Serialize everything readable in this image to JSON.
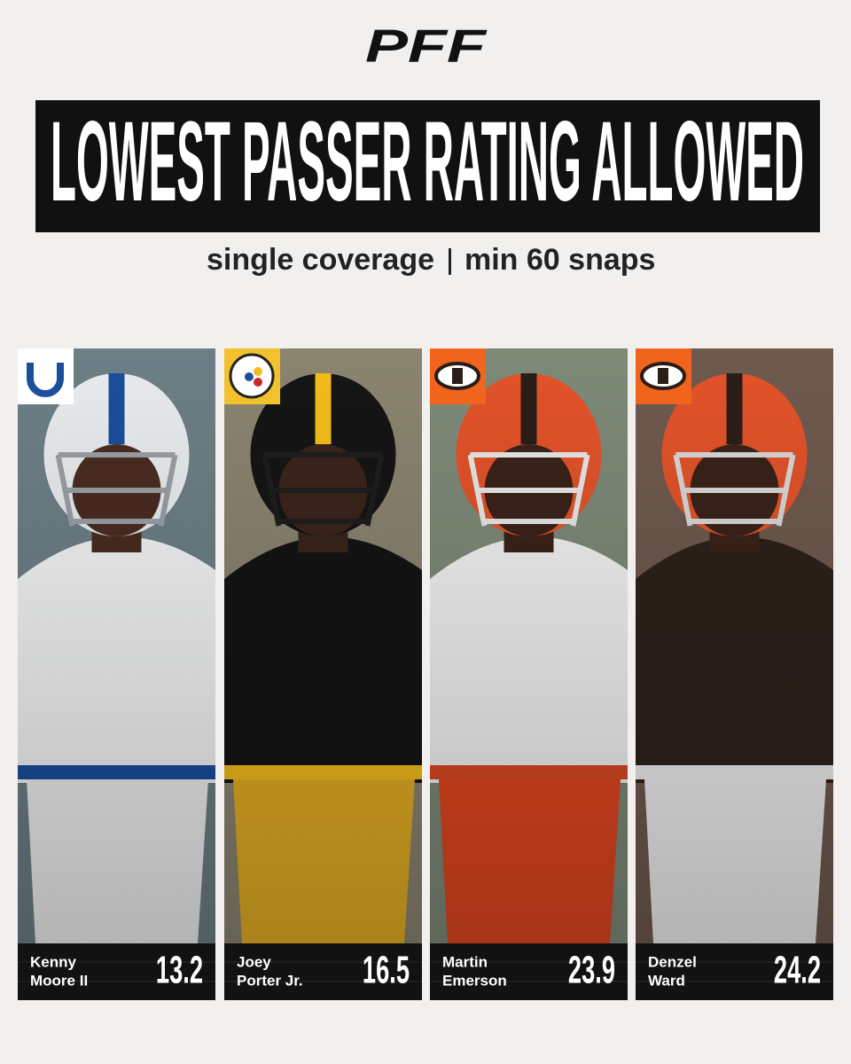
{
  "logo": "PFF",
  "title": "LOWEST PASSER RATING ALLOWED",
  "subtitle": {
    "left": "single coverage",
    "right": "min 60 snaps"
  },
  "players": [
    {
      "name": [
        "Kenny",
        "Moore II"
      ],
      "value": 13.2
    },
    {
      "name": [
        "Joey",
        "Porter Jr."
      ],
      "value": 16.5
    },
    {
      "name": [
        "Martin",
        "Emerson"
      ],
      "value": 23.9
    },
    {
      "name": [
        "Denzel",
        "Ward"
      ],
      "value": 24.2
    }
  ]
}
